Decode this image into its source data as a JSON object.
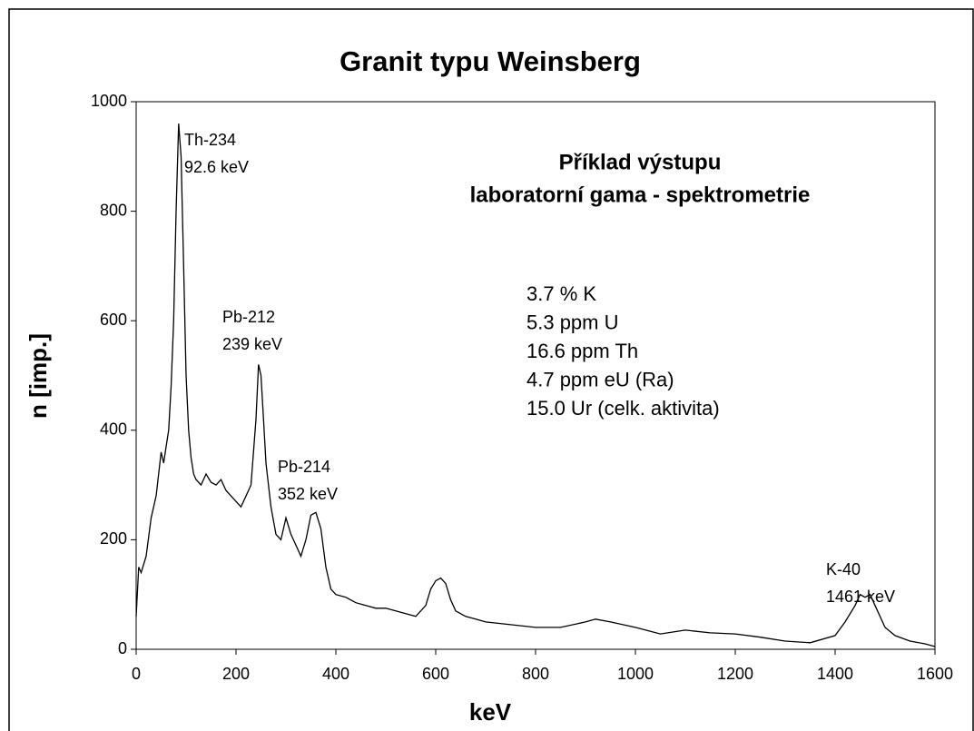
{
  "chart_data": {
    "type": "line",
    "title": "Granit typu Weinsberg",
    "x_label": "keV",
    "y_label": "n [imp.]",
    "xlim": [
      0,
      1600
    ],
    "ylim": [
      0,
      1000
    ],
    "xticks": [
      0,
      200,
      400,
      600,
      800,
      1000,
      1200,
      1400,
      1600
    ],
    "yticks": [
      0,
      200,
      400,
      600,
      800,
      1000
    ],
    "subtitle_lines": [
      "Příklad výstupu",
      "laboratorní gama - spektrometrie"
    ],
    "info_lines": [
      "3.7 % K",
      "5.3 ppm U",
      "16.6 ppm Th",
      "4.7 ppm eU (Ra)",
      "15.0 Ur (celk. aktivita)"
    ],
    "annotations": [
      [
        "Th-234",
        "92.6 keV"
      ],
      [
        "Pb-212",
        "239 keV"
      ],
      [
        "Pb-214",
        "352 keV"
      ],
      [
        "K-40",
        "1461 keV"
      ]
    ],
    "series": [
      {
        "color": "#000000",
        "x": [
          0,
          5,
          10,
          20,
          30,
          40,
          50,
          55,
          60,
          65,
          70,
          75,
          80,
          85,
          90,
          95,
          100,
          105,
          110,
          115,
          120,
          130,
          140,
          150,
          160,
          170,
          180,
          190,
          200,
          210,
          220,
          230,
          240,
          245,
          250,
          255,
          260,
          270,
          280,
          290,
          300,
          310,
          320,
          330,
          340,
          350,
          360,
          370,
          380,
          390,
          400,
          420,
          440,
          460,
          480,
          500,
          520,
          540,
          560,
          580,
          590,
          600,
          610,
          620,
          630,
          640,
          660,
          680,
          700,
          750,
          800,
          850,
          900,
          920,
          950,
          1000,
          1050,
          1100,
          1150,
          1200,
          1250,
          1300,
          1350,
          1400,
          1420,
          1440,
          1450,
          1460,
          1470,
          1480,
          1500,
          1520,
          1550,
          1580,
          1600
        ],
        "values": [
          60,
          150,
          140,
          170,
          240,
          280,
          360,
          340,
          370,
          400,
          480,
          600,
          800,
          960,
          900,
          700,
          500,
          400,
          350,
          320,
          310,
          300,
          320,
          305,
          300,
          310,
          290,
          280,
          270,
          260,
          280,
          300,
          420,
          520,
          500,
          420,
          340,
          260,
          210,
          200,
          240,
          210,
          190,
          170,
          200,
          245,
          250,
          220,
          150,
          110,
          100,
          95,
          85,
          80,
          75,
          75,
          70,
          65,
          60,
          80,
          110,
          125,
          130,
          120,
          90,
          70,
          60,
          55,
          50,
          45,
          40,
          40,
          50,
          55,
          50,
          40,
          28,
          35,
          30,
          28,
          22,
          15,
          12,
          25,
          50,
          80,
          100,
          95,
          100,
          80,
          40,
          25,
          15,
          10,
          5
        ]
      }
    ]
  }
}
